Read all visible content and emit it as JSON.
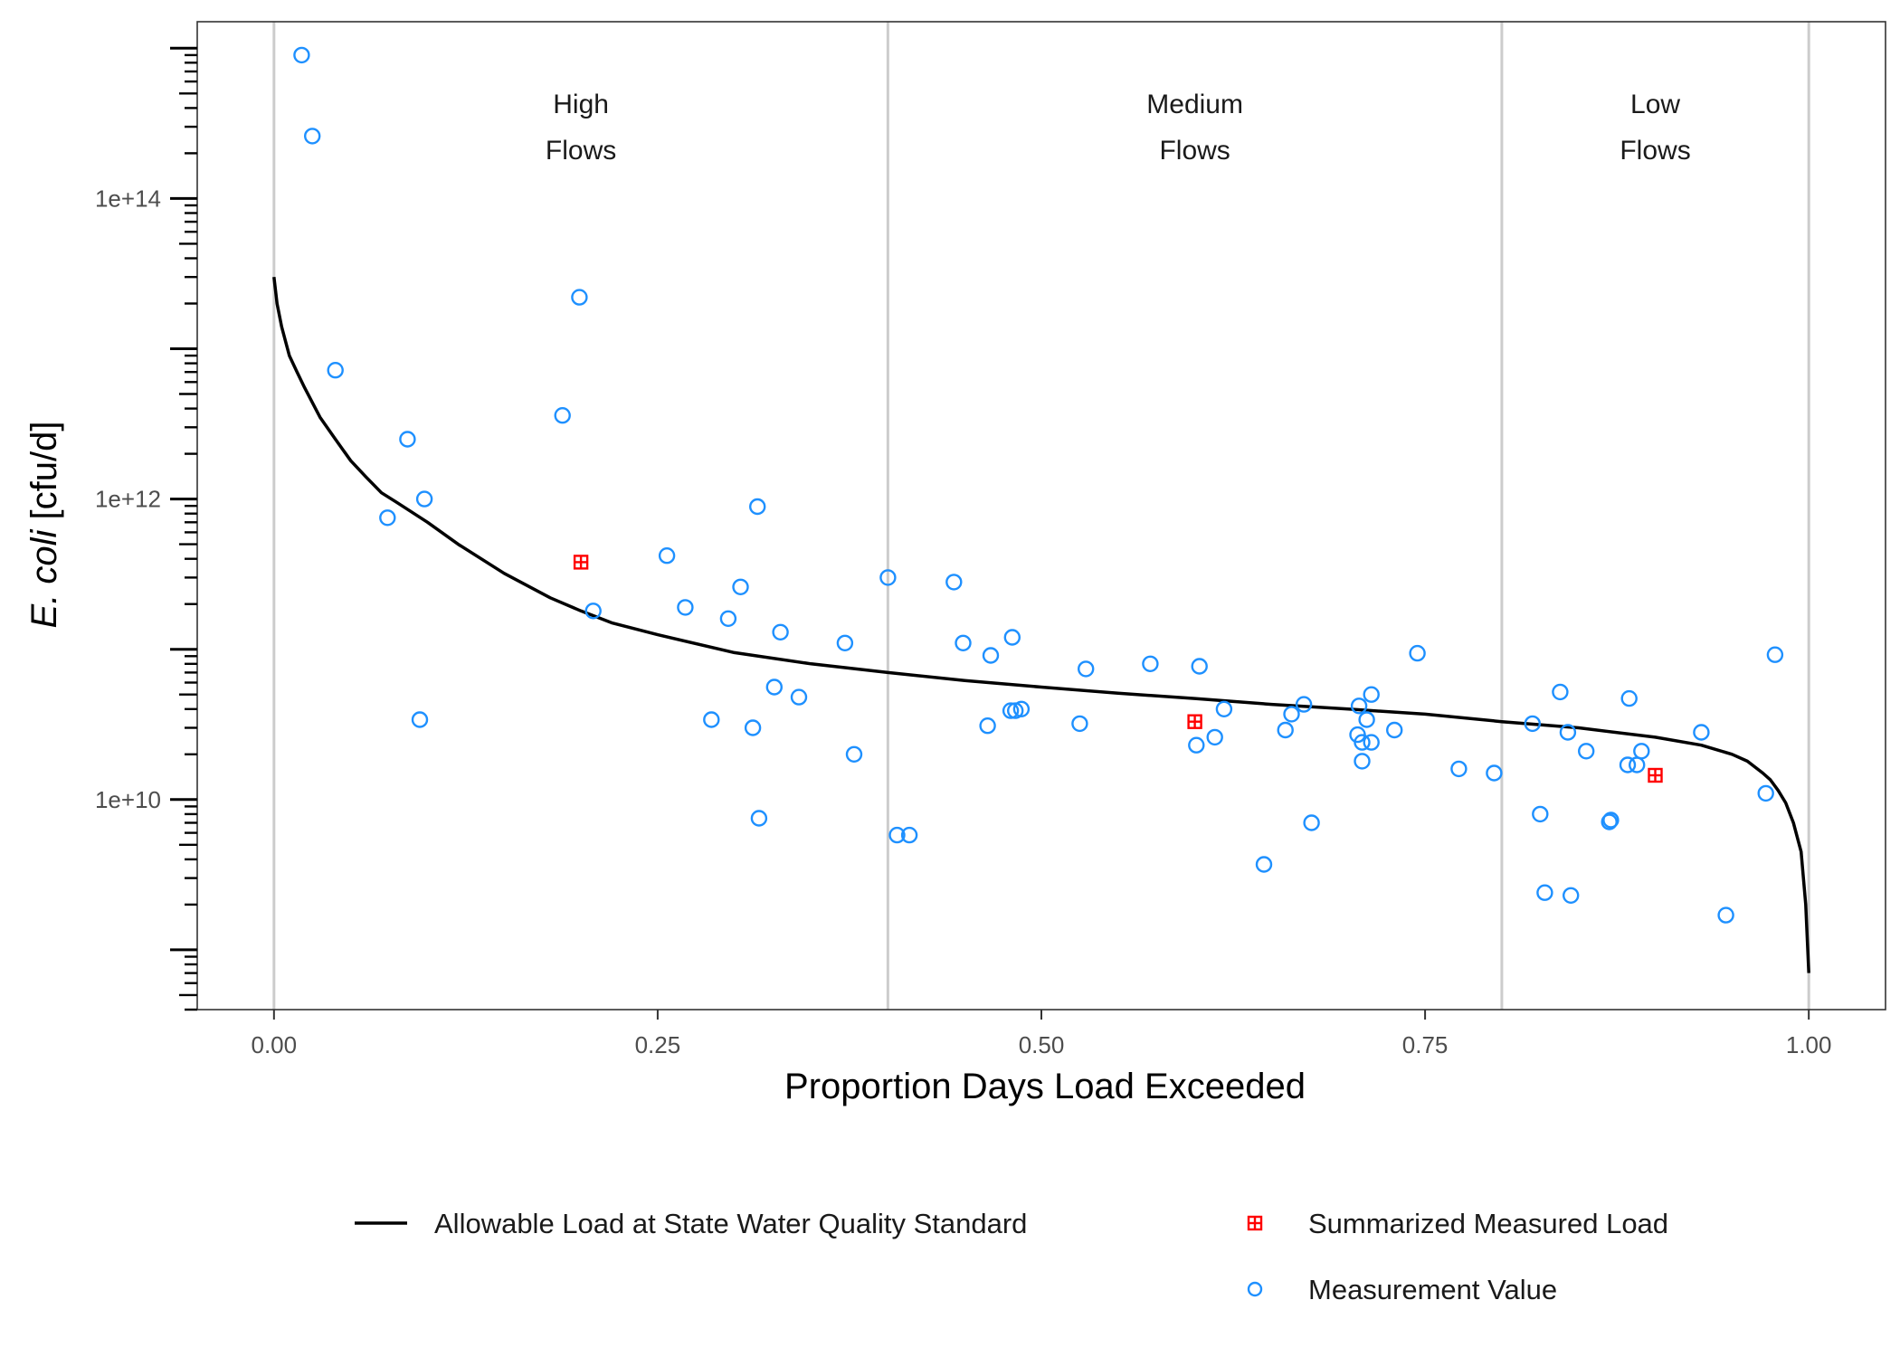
{
  "chart_data": {
    "type": "scatter",
    "xlabel": "Proportion Days Load Exceeded",
    "ylabel_italic": "E. coli",
    "ylabel_unit": " [cfu/d]",
    "xlim": [
      -0.05,
      1.05
    ],
    "ylim": [
      400000000,
      1500000000000000
    ],
    "y_scale": "log10",
    "x_ticks": [
      0,
      0.25,
      0.5,
      0.75,
      1.0
    ],
    "x_tick_labels": [
      "0.00",
      "0.25",
      "0.50",
      "0.75",
      "1.00"
    ],
    "y_ticks": [
      10000000000,
      1000000000000,
      100000000000000
    ],
    "y_tick_labels": [
      "1e+10",
      "1e+12",
      "1e+14"
    ],
    "grid": false,
    "legend_position": "bottom",
    "band_boundaries": [
      0,
      0.4,
      0.8,
      1.0
    ],
    "bands": [
      {
        "line1": "High",
        "line2": "Flows",
        "x": 0.2
      },
      {
        "line1": "Medium",
        "line2": "Flows",
        "x": 0.6
      },
      {
        "line1": "Low",
        "line2": "Flows",
        "x": 0.9
      }
    ],
    "colors": {
      "curve": "#000000",
      "measurement": "#1E90FF",
      "summary": "#FF0000",
      "band_lines": "#cccccc",
      "panel_border": "#333333"
    },
    "series": [
      {
        "name": "Allowable Load at State Water Quality Standard",
        "kind": "line",
        "x": [
          0.0,
          0.002,
          0.005,
          0.01,
          0.015,
          0.02,
          0.03,
          0.04,
          0.05,
          0.06,
          0.07,
          0.08,
          0.1,
          0.12,
          0.15,
          0.18,
          0.2,
          0.22,
          0.25,
          0.3,
          0.35,
          0.4,
          0.45,
          0.5,
          0.55,
          0.6,
          0.65,
          0.7,
          0.75,
          0.8,
          0.85,
          0.9,
          0.93,
          0.95,
          0.96,
          0.97,
          0.975,
          0.98,
          0.985,
          0.99,
          0.995,
          0.998,
          1.0
        ],
        "y": [
          30000000000000,
          20000000000000,
          14000000000000,
          9000000000000,
          7000000000000,
          5500000000000,
          3500000000000,
          2500000000000,
          1800000000000,
          1400000000000,
          1100000000000,
          950000000000,
          700000000000,
          500000000000,
          320000000000,
          220000000000,
          180000000000,
          150000000000,
          125000000000,
          95000000000,
          80000000000,
          70000000000,
          62000000000,
          56000000000,
          51000000000,
          47000000000,
          43000000000,
          40000000000,
          37000000000,
          33000000000,
          30000000000,
          26000000000,
          23000000000,
          20000000000,
          18000000000,
          15000000000,
          13500000000,
          11500000000,
          9500000000,
          7000000000,
          4500000000,
          2000000000,
          700000000
        ]
      },
      {
        "name": "Summarized Measured Load",
        "kind": "square-plus",
        "x": [
          0.2,
          0.6,
          0.9
        ],
        "y": [
          380000000000,
          33000000000,
          14500000000
        ]
      },
      {
        "name": "Measurement Value",
        "kind": "open-circle",
        "x": [
          0.018,
          0.025,
          0.04,
          0.074,
          0.087,
          0.095,
          0.098,
          0.188,
          0.199,
          0.208,
          0.256,
          0.268,
          0.285,
          0.296,
          0.304,
          0.312,
          0.315,
          0.316,
          0.326,
          0.33,
          0.342,
          0.372,
          0.378,
          0.4,
          0.406,
          0.414,
          0.443,
          0.449,
          0.465,
          0.467,
          0.48,
          0.481,
          0.483,
          0.487,
          0.525,
          0.529,
          0.571,
          0.601,
          0.603,
          0.613,
          0.619,
          0.645,
          0.659,
          0.663,
          0.671,
          0.676,
          0.706,
          0.707,
          0.709,
          0.709,
          0.712,
          0.715,
          0.715,
          0.73,
          0.745,
          0.772,
          0.795,
          0.82,
          0.825,
          0.828,
          0.838,
          0.843,
          0.845,
          0.855,
          0.87,
          0.871,
          0.882,
          0.883,
          0.888,
          0.891,
          0.93,
          0.946,
          0.972,
          0.978
        ],
        "y": [
          900000000000000,
          260000000000000,
          7200000000000,
          750000000000,
          2500000000000,
          34000000000,
          1000000000000,
          3600000000000,
          22000000000000,
          180000000000,
          420000000000,
          190000000000,
          34000000000,
          160000000000,
          260000000000,
          30000000000,
          890000000000,
          7500000000,
          56000000000,
          130000000000,
          48000000000,
          110000000000,
          20000000000,
          300000000000,
          5800000000,
          5800000000,
          280000000000,
          110000000000,
          31000000000,
          91000000000,
          39000000000,
          120000000000,
          39000000000,
          40000000000,
          32000000000,
          74000000000,
          80000000000,
          23000000000,
          77000000000,
          26000000000,
          40000000000,
          3700000000,
          29000000000,
          37000000000,
          43000000000,
          7000000000,
          27000000000,
          42000000000,
          18000000000,
          24000000000,
          34000000000,
          24000000000,
          50000000000,
          29000000000,
          94000000000,
          16000000000,
          15000000000,
          32000000000,
          8000000000,
          2400000000,
          52000000000,
          28000000000,
          2300000000,
          21000000000,
          7100000000,
          7300000000,
          17000000000,
          47000000000,
          17000000000,
          21000000000,
          28000000000,
          1700000000,
          11000000000,
          92000000000
        ]
      }
    ]
  }
}
